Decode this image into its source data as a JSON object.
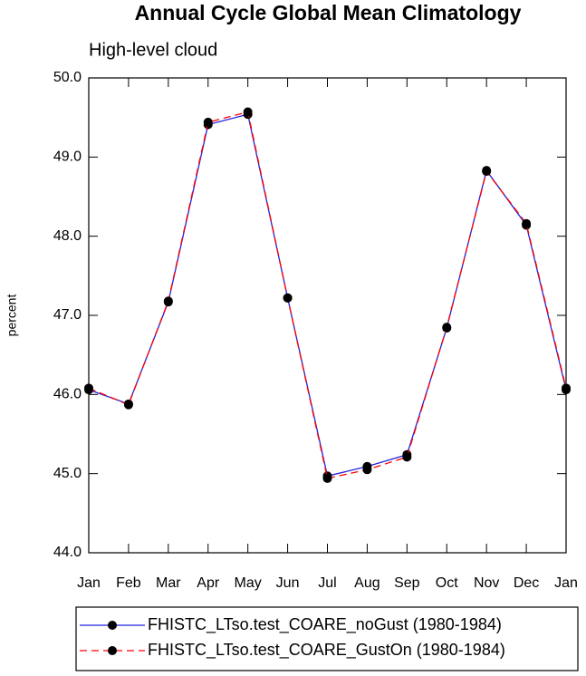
{
  "chart_data": {
    "type": "line",
    "title": "Annual Cycle Global Mean Climatology",
    "subtitle": "High-level cloud",
    "y_label": "percent",
    "categories": [
      "Jan",
      "Feb",
      "Mar",
      "Apr",
      "May",
      "Jun",
      "Jul",
      "Aug",
      "Sep",
      "Oct",
      "Nov",
      "Dec",
      "Jan"
    ],
    "series": [
      {
        "name": "FHISTC_LTso.test_COARE_noGust (1980-1984)",
        "color": "#2020e0",
        "line_style": "solid",
        "values": [
          46.06,
          45.88,
          47.17,
          49.41,
          49.54,
          47.22,
          44.97,
          45.09,
          45.24,
          46.84,
          48.83,
          48.14,
          46.06
        ]
      },
      {
        "name": "FHISTC_LTso.test_COARE_GustOn (1980-1984)",
        "color": "#ff0000",
        "line_style": "dashed",
        "values": [
          46.08,
          45.87,
          47.18,
          49.44,
          49.57,
          47.22,
          44.94,
          45.05,
          45.21,
          46.85,
          48.82,
          48.16,
          46.08
        ]
      }
    ],
    "marker_color": "#000000",
    "ylim": [
      44,
      50
    ],
    "yticks": [
      {
        "value": 44,
        "label": "44.0"
      },
      {
        "value": 45,
        "label": "45.0"
      },
      {
        "value": 46,
        "label": "46.0"
      },
      {
        "value": 47,
        "label": "47.0"
      },
      {
        "value": 48,
        "label": "48.0"
      },
      {
        "value": 49,
        "label": "49.0"
      },
      {
        "value": 50,
        "label": "50.0"
      }
    ]
  }
}
